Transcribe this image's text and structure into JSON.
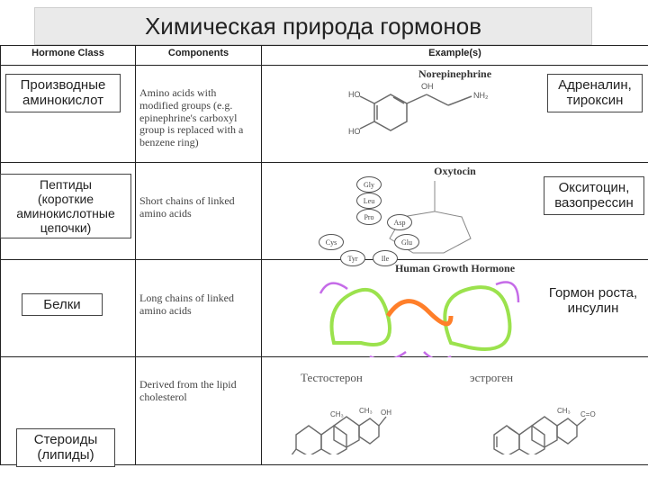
{
  "title": "Химическая природа гормонов",
  "headers": [
    "Hormone Class",
    "Components",
    "Example(s)"
  ],
  "rows": [
    {
      "class_ru": "Производные аминокислот",
      "components": "Amino acids with modified groups (e.g. epinephrine's carboxyl group is replaced with a benzene ring)",
      "example_title": "Norepinephrine",
      "example_ru": "Адреналин,\nтироксин"
    },
    {
      "class_ru": "Пептиды\n(короткие\nаминокислотные\nцепочки)",
      "components": "Short chains of linked amino acids",
      "example_title": "Oxytocin",
      "example_ru": "Окситоцин,\nвазопрессин",
      "aa": [
        "Gly",
        "Leu",
        "Pro",
        "Asp",
        "Glu",
        "Ile",
        "Tyr",
        "Cys"
      ]
    },
    {
      "class_ru": "Белки",
      "components": "Long chains of linked amino acids",
      "example_title": "Human Growth Hormone",
      "example_ru": "Гормон роста,\nинсулин"
    },
    {
      "class_ru": "Стероиды\n(липиды)",
      "components": "Derived from the lipid cholesterol",
      "example_title": "",
      "label_left": "Тестостерон",
      "label_right": "эстроген"
    }
  ],
  "colors": {
    "border": "#222222",
    "bg": "#ffffff",
    "title_bg": "#eaeaea",
    "mol_line": "#6a6a6a",
    "protein1": "#9be24d",
    "protein2": "#ff7f2a",
    "protein3": "#c56be8"
  }
}
